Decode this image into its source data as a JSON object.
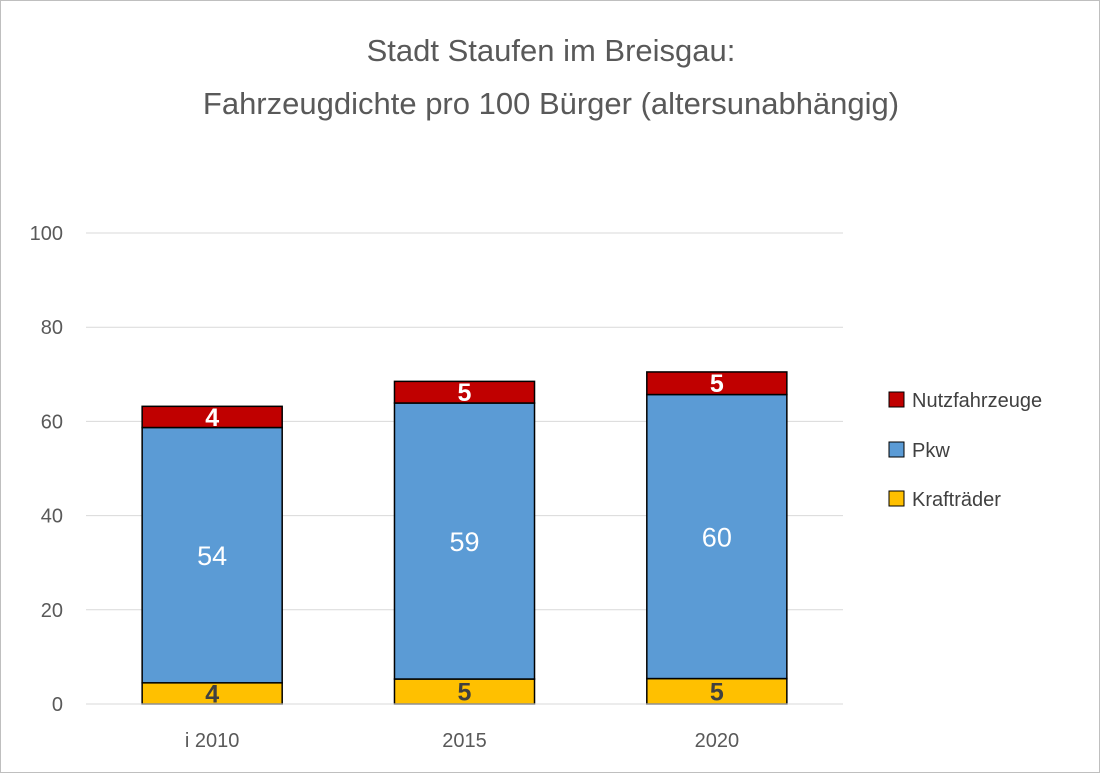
{
  "chart_data": {
    "type": "bar",
    "stacked": true,
    "title_lines": [
      "Stadt Staufen im Breisgau:",
      "Fahrzeugdichte pro 100 Bürger (altersunabhängig)"
    ],
    "xlabel": "",
    "ylabel": "",
    "categories": [
      "i 2010",
      "2015",
      "2020"
    ],
    "ylim": [
      0,
      100
    ],
    "yticks": [
      0,
      20,
      40,
      60,
      80,
      100
    ],
    "grid": true,
    "legend_position": "right",
    "series": [
      {
        "name": "Krafträder",
        "values": [
          4.5,
          5.3,
          5.4
        ],
        "labels": [
          "4",
          "5",
          "5"
        ],
        "color": "#ffc000",
        "label_color": "#404040",
        "label_bold": true
      },
      {
        "name": "Pkw",
        "values": [
          54.2,
          58.6,
          60.3
        ],
        "labels": [
          "54",
          "59",
          "60"
        ],
        "color": "#5b9bd5",
        "label_color": "#ffffff",
        "label_bold": false
      },
      {
        "name": "Nutzfahrzeuge",
        "values": [
          4.5,
          4.6,
          4.8
        ],
        "labels": [
          "4",
          "5",
          "5"
        ],
        "color": "#c00000",
        "label_color": "#ffffff",
        "label_bold": true
      }
    ],
    "legend_order": [
      "Nutzfahrzeuge",
      "Pkw",
      "Krafträder"
    ]
  }
}
